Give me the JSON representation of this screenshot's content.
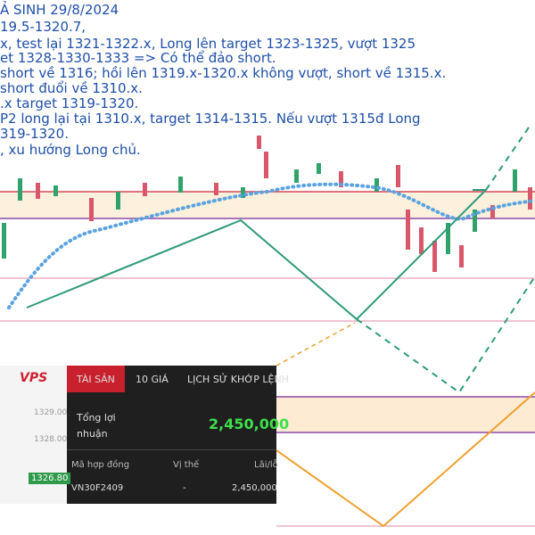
{
  "notes": [
    "Ả SINH 29/8/2024",
    "19.5-1320.7,",
    "x, test lại 1321-1322.x, Long lên target 1323-1325, vượt 1325",
    "et 1328-1330-1333 => Có thể đảo short.",
    "short về 1316; hồi lên 1319.x-1320.x không vượt, short về 1315.x.",
    "short đuổi về 1310.x.",
    ".x target 1319-1320.",
    "P2 long lại tại 1310.x, target 1314-1315. Nếu vượt 1315đ Long",
    "319-1320.",
    ", xu hướng Long chủ."
  ],
  "panel": {
    "logo": "VPS",
    "tabs": [
      "TÀI SẢN",
      "10 GIÁ",
      "LỊCH SỬ KHỚP LỆNH"
    ],
    "profit_label": [
      "Tổng lợi",
      "nhuận"
    ],
    "profit": "2,450,000",
    "columns": [
      "Mã hợp đồng",
      "Vị thế",
      "Lãi/lỗ"
    ],
    "row": [
      "VN30F2409",
      "-",
      "2,450,000"
    ],
    "axis_labels": [
      "1329.00",
      "1328.00",
      "1326.80"
    ]
  }
}
